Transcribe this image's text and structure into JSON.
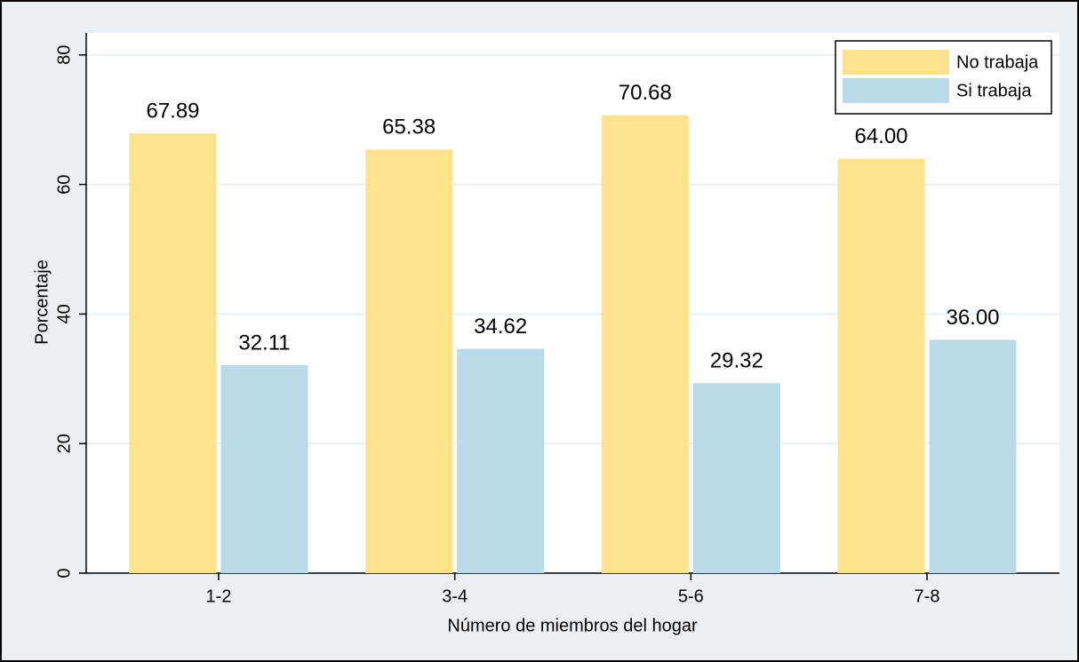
{
  "chart_data": {
    "type": "bar",
    "categories": [
      "1-2",
      "3-4",
      "5-6",
      "7-8"
    ],
    "series": [
      {
        "name": "No trabaja",
        "color": "#ffe38c",
        "values": [
          67.89,
          65.38,
          70.68,
          64.0
        ],
        "value_labels": [
          "67.89",
          "65.38",
          "70.68",
          "64.00"
        ]
      },
      {
        "name": "Si trabaja",
        "color": "#b9dbe9",
        "values": [
          32.11,
          34.62,
          29.32,
          36.0
        ],
        "value_labels": [
          "32.11",
          "34.62",
          "29.32",
          "36.00"
        ]
      }
    ],
    "x_label": "Número de miembros del hogar",
    "y_label": "Porcentaje",
    "ylim": [
      0,
      83.4
    ],
    "yticks": [
      0,
      20,
      40,
      60,
      80
    ],
    "grid": true,
    "legend": "top-right"
  }
}
